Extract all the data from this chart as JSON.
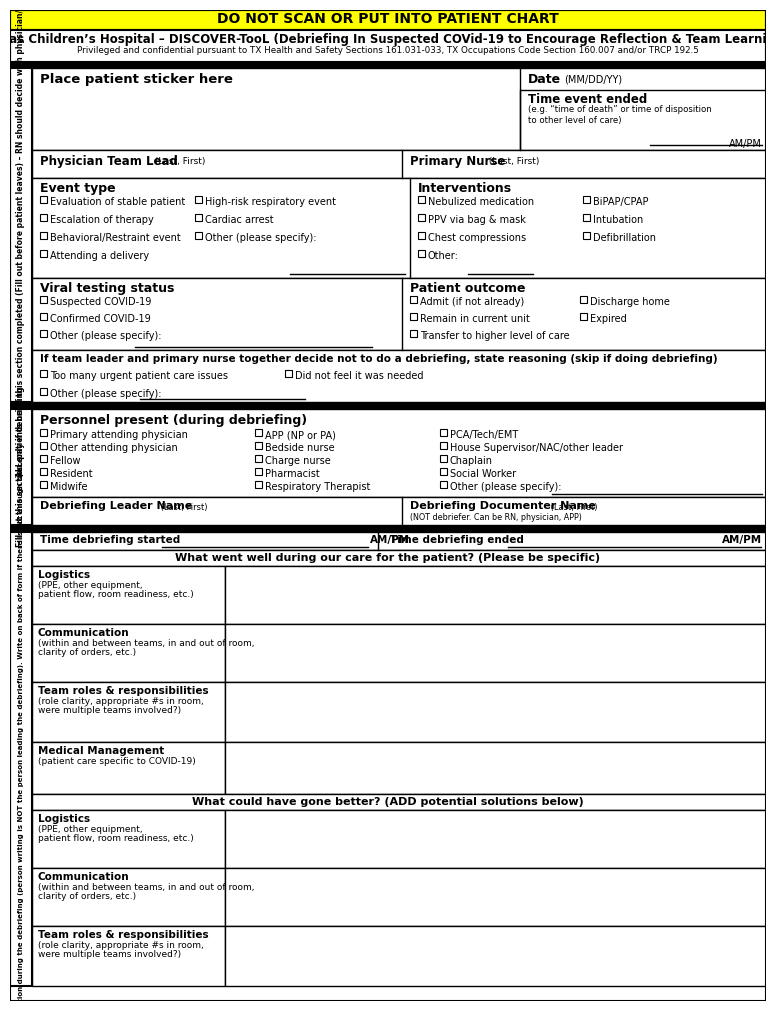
{
  "fig_width": 7.56,
  "fig_height": 9.91,
  "dpi": 100,
  "yellow_banner": "DO NOT SCAN OR PUT INTO PATIENT CHART",
  "title_line1": "Texas Children’s Hospital – DISCOVER-TooL (Debriefing In Suspected COVid-19 to Encourage Reflection & Team Learning)",
  "title_line2": "Privileged and confidential pursuant to TX Health and Safety Sections 161.031-033, TX Occupations Code Section 160.007 and/or TRCP 192.5",
  "sidebar_top": "ALL patients need this section completed (Fill out before patient leaves) – RN should decide with physician/APP",
  "sidebar_bottom": "Fill out this section only if debriefing",
  "sidebar_bottom2": "Fill out this section during the debriefing (person writing is NOT the person leading the debriefing). Write on back of form if there is not enough space."
}
